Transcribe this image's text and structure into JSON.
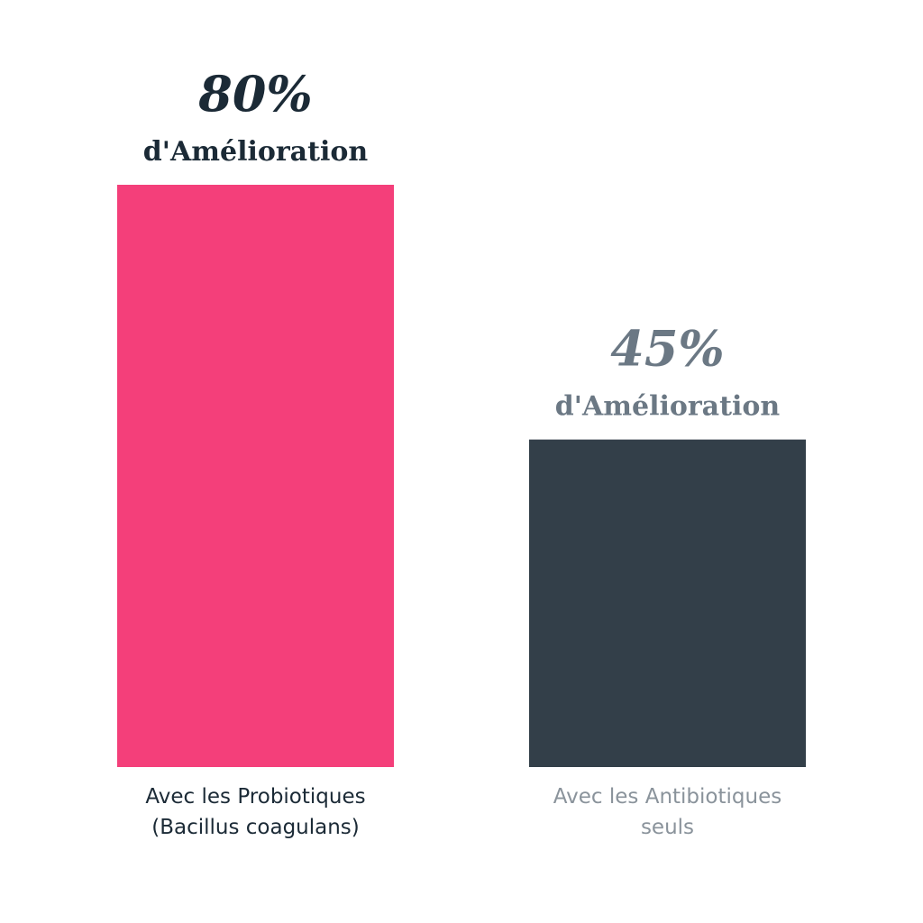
{
  "chart_data": {
    "type": "bar",
    "categories": [
      [
        "Avec les Probiotiques",
        "(Bacillus coagulans)"
      ],
      [
        "Avec les Antibiotiques",
        "seuls"
      ]
    ],
    "values": [
      80,
      45
    ],
    "value_labels": [
      "80%",
      "45%"
    ],
    "sub_labels": [
      "d'Amélioration",
      "d'Amélioration"
    ],
    "unit": "%",
    "ylim": [
      0,
      100
    ],
    "grid": false,
    "legend": "none",
    "colors": {
      "bars": [
        "#f43f7a",
        "#333f49"
      ],
      "value_labels": [
        "#1b2a36",
        "#6b7884"
      ],
      "category_labels": [
        "#1b2a36",
        "#8a939b"
      ]
    }
  }
}
